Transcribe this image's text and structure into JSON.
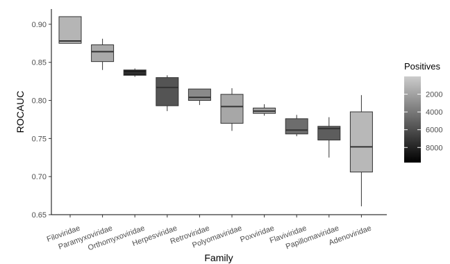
{
  "chart_data": {
    "type": "boxplot",
    "xlabel": "Family",
    "ylabel": "ROCAUC",
    "ylim": [
      0.65,
      0.92
    ],
    "y_ticks": [
      0.65,
      0.7,
      0.75,
      0.8,
      0.85,
      0.9
    ],
    "y_tick_labels": [
      "0.65",
      "0.70",
      "0.75",
      "0.80",
      "0.85",
      "0.90"
    ],
    "grid": false,
    "x_tick_angle_deg": -20,
    "categories": [
      "Filoviridae",
      "Paramyxoviridae",
      "Orthomyxoviridae",
      "Herpesviridae",
      "Retroviridae",
      "Polyomaviridae",
      "Poxviridae",
      "Flaviviridae",
      "Papillomaviridae",
      "Adenoviridae"
    ],
    "boxes": [
      {
        "family": "Filoviridae",
        "min": 0.875,
        "q1": 0.875,
        "median": 0.878,
        "q3": 0.91,
        "max": 0.91,
        "fill": "#b5b5b5"
      },
      {
        "family": "Paramyxoviridae",
        "min": 0.84,
        "q1": 0.851,
        "median": 0.864,
        "q3": 0.873,
        "max": 0.881,
        "fill": "#a9a9a9"
      },
      {
        "family": "Orthomyxoviridae",
        "min": 0.831,
        "q1": 0.833,
        "median": 0.836,
        "q3": 0.84,
        "max": 0.842,
        "fill": "#1f1f1f"
      },
      {
        "family": "Herpesviridae",
        "min": 0.786,
        "q1": 0.793,
        "median": 0.817,
        "q3": 0.83,
        "max": 0.833,
        "fill": "#545454"
      },
      {
        "family": "Retroviridae",
        "min": 0.794,
        "q1": 0.8,
        "median": 0.804,
        "q3": 0.815,
        "max": 0.815,
        "fill": "#8a8a8a"
      },
      {
        "family": "Polyomaviridae",
        "min": 0.76,
        "q1": 0.77,
        "median": 0.792,
        "q3": 0.808,
        "max": 0.816,
        "fill": "#a7a7a7"
      },
      {
        "family": "Poxviridae",
        "min": 0.78,
        "q1": 0.783,
        "median": 0.786,
        "q3": 0.79,
        "max": 0.795,
        "fill": "#a4a4a4"
      },
      {
        "family": "Flaviviridae",
        "min": 0.753,
        "q1": 0.756,
        "median": 0.761,
        "q3": 0.776,
        "max": 0.781,
        "fill": "#6d6d6d"
      },
      {
        "family": "Papillomaviridae",
        "min": 0.725,
        "q1": 0.748,
        "median": 0.763,
        "q3": 0.766,
        "max": 0.778,
        "fill": "#5d5d5d"
      },
      {
        "family": "Adenoviridae",
        "min": 0.661,
        "q1": 0.706,
        "median": 0.739,
        "q3": 0.785,
        "max": 0.807,
        "fill": "#b8b8b8"
      }
    ],
    "legend": {
      "title": "Positives",
      "placement": "right",
      "range": [
        0,
        9700
      ],
      "tick_values": [
        2000,
        4000,
        6000,
        8000
      ],
      "tick_labels": [
        "2000",
        "4000",
        "6000",
        "8000"
      ],
      "color_low": "#cccccc",
      "color_high": "#000000"
    }
  }
}
